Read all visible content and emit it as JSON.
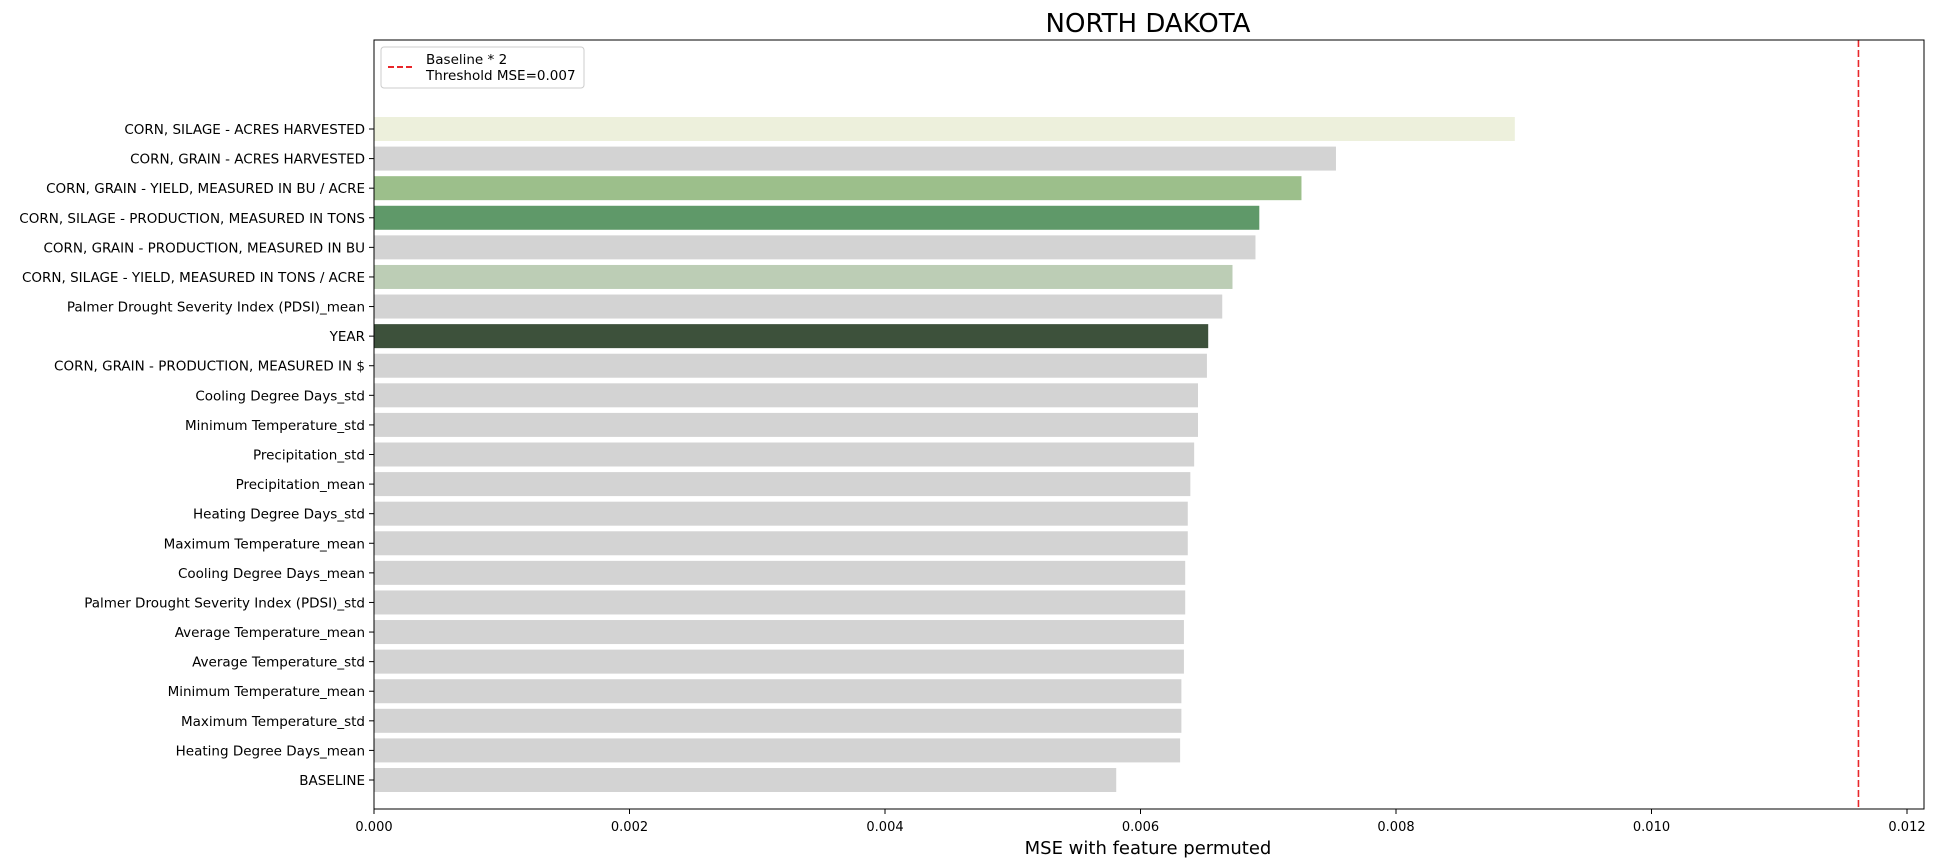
{
  "chart_data": {
    "type": "bar",
    "orientation": "horizontal",
    "title": "NORTH DAKOTA",
    "xlabel": "MSE with feature permuted",
    "ylabel": "",
    "xlim": [
      0,
      0.0121
    ],
    "xticks": [
      0.0,
      0.002,
      0.004,
      0.006,
      0.008,
      0.01,
      0.012
    ],
    "xtick_labels": [
      "0.000",
      "0.002",
      "0.004",
      "0.006",
      "0.008",
      "0.010",
      "0.012"
    ],
    "grid": false,
    "categories": [
      "CORN, SILAGE - ACRES HARVESTED",
      "CORN, GRAIN - ACRES HARVESTED",
      "CORN, GRAIN - YIELD, MEASURED IN BU / ACRE",
      "CORN, SILAGE - PRODUCTION, MEASURED IN TONS",
      "CORN, GRAIN - PRODUCTION, MEASURED IN BU",
      "CORN, SILAGE - YIELD, MEASURED IN TONS / ACRE",
      "Palmer Drought Severity Index (PDSI)_mean",
      "YEAR",
      "CORN, GRAIN - PRODUCTION, MEASURED IN $",
      "Cooling Degree Days_std",
      "Minimum Temperature_std",
      "Precipitation_std",
      "Precipitation_mean",
      "Heating Degree Days_std",
      "Maximum Temperature_mean",
      "Cooling Degree Days_mean",
      "Palmer Drought Severity Index (PDSI)_std",
      "Average Temperature_mean",
      "Average Temperature_std",
      "Minimum Temperature_mean",
      "Maximum Temperature_std",
      "Heating Degree Days_mean",
      "BASELINE"
    ],
    "values": [
      0.00893,
      0.00753,
      0.00726,
      0.00693,
      0.0069,
      0.00672,
      0.00664,
      0.00653,
      0.00652,
      0.00645,
      0.00645,
      0.00642,
      0.00639,
      0.00637,
      0.00637,
      0.00635,
      0.00635,
      0.00634,
      0.00634,
      0.00632,
      0.00632,
      0.00631,
      0.00581
    ],
    "colors": [
      "#edf0dc",
      "#d3d3d3",
      "#9cbf8b",
      "#5f9969",
      "#d3d3d3",
      "#bccdb5",
      "#d3d3d3",
      "#3d513b",
      "#d3d3d3",
      "#d3d3d3",
      "#d3d3d3",
      "#d3d3d3",
      "#d3d3d3",
      "#d3d3d3",
      "#d3d3d3",
      "#d3d3d3",
      "#d3d3d3",
      "#d3d3d3",
      "#d3d3d3",
      "#d3d3d3",
      "#d3d3d3",
      "#d3d3d3",
      "#d3d3d3"
    ],
    "threshold": {
      "value": 0.01162,
      "color": "#e8262a",
      "style": "dashed"
    },
    "legend": {
      "placement": "upper-left",
      "entries": [
        "Baseline * 2",
        "Threshold MSE=0.007"
      ]
    }
  }
}
